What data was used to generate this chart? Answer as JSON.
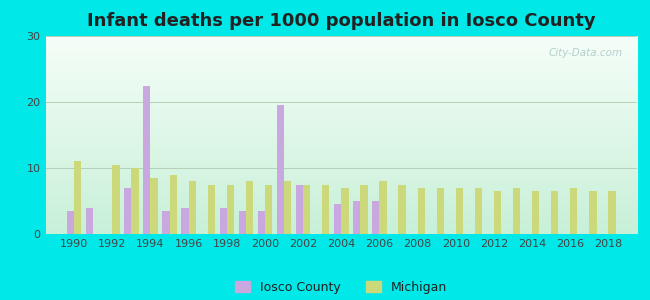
{
  "title": "Infant deaths per 1000 population in Iosco County",
  "years": [
    1990,
    1991,
    1992,
    1993,
    1994,
    1995,
    1996,
    1997,
    1998,
    1999,
    2000,
    2001,
    2002,
    2003,
    2004,
    2005,
    2006,
    2007,
    2008,
    2009,
    2010,
    2011,
    2012,
    2013,
    2014,
    2015,
    2016,
    2017,
    2018
  ],
  "iosco": [
    3.5,
    4.0,
    0,
    7.0,
    22.5,
    3.5,
    4.0,
    0,
    4.0,
    3.5,
    3.5,
    19.5,
    7.5,
    0,
    4.5,
    5.0,
    5.0,
    0,
    0,
    0,
    0,
    0,
    0,
    0,
    0,
    0,
    0,
    0,
    0
  ],
  "michigan": [
    11.0,
    0,
    10.5,
    10.0,
    8.5,
    9.0,
    8.0,
    7.5,
    7.5,
    8.0,
    7.5,
    8.0,
    7.5,
    7.5,
    7.0,
    7.5,
    8.0,
    7.5,
    7.0,
    7.0,
    7.0,
    7.0,
    6.5,
    7.0,
    6.5,
    6.5,
    7.0,
    6.5,
    6.5
  ],
  "iosco_color": "#c9a8e0",
  "michigan_color": "#ccd97a",
  "ylim": [
    0,
    30
  ],
  "yticks": [
    0,
    10,
    20,
    30
  ],
  "bar_width": 0.38,
  "title_fontsize": 13,
  "watermark": "City-Data.com",
  "outer_bg": "#00e8e8",
  "plot_bg_top": "#f5fef8",
  "plot_bg_bottom": "#c8f0d8",
  "grid_color": "#b0c8b0",
  "tick_color": "#444444",
  "title_color": "#222222"
}
